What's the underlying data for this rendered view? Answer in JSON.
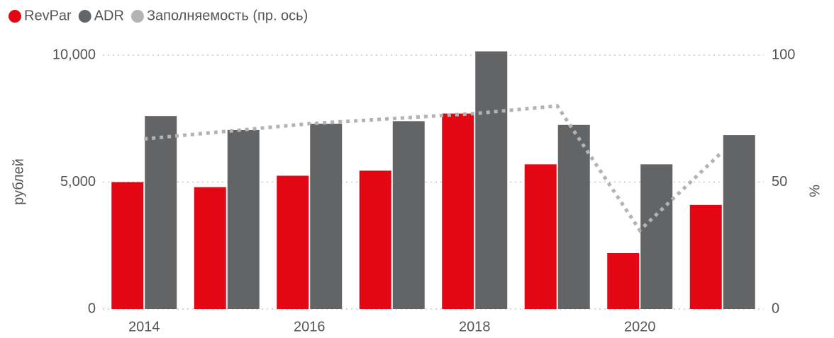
{
  "chart_data": {
    "type": "bar",
    "categories": [
      "2014",
      null,
      "2016",
      null,
      "2018",
      null,
      "2020",
      null
    ],
    "series": [
      {
        "name": "RevPar",
        "color": "#e30613",
        "values": [
          5000,
          4800,
          5250,
          5450,
          7700,
          5700,
          2200,
          4100
        ]
      },
      {
        "name": "ADR",
        "color": "#636466",
        "values": [
          7600,
          7050,
          7300,
          7400,
          10150,
          7250,
          5700,
          6850
        ]
      },
      {
        "name": "Заполняемость (пр. ось)",
        "type": "line",
        "axis": "y2",
        "color": "#b3b3b3",
        "values": [
          67,
          70,
          73,
          75,
          77,
          80,
          31,
          62
        ]
      }
    ],
    "ylabel": "рублей",
    "y2label": "%",
    "ylim": [
      0,
      10000
    ],
    "yticks": [
      0,
      {
        "value": 5000,
        "label": "5,000"
      },
      {
        "value": 10000,
        "label": "10,000"
      }
    ],
    "y2lim": [
      0,
      100
    ],
    "y2ticks": [
      0,
      50,
      100
    ],
    "grid": true,
    "legend": "top-left"
  }
}
